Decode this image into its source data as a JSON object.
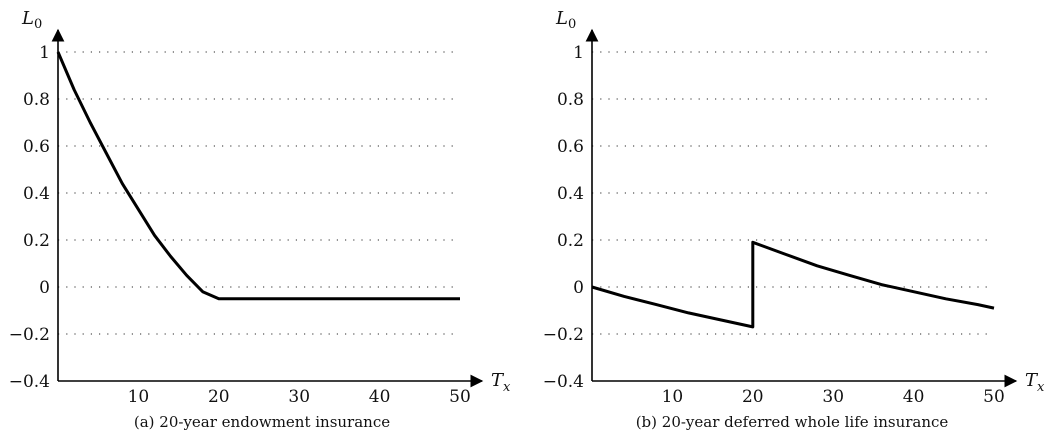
{
  "chart_data": [
    {
      "type": "line",
      "caption": "(a) 20-year endowment insurance",
      "xlabel": "T",
      "xlabel_sub": "x",
      "ylabel": "L",
      "ylabel_sub": "0",
      "xlim": [
        0,
        51
      ],
      "ylim": [
        -0.4,
        1.0
      ],
      "xticks": [
        10,
        20,
        30,
        40,
        50
      ],
      "yticks": [
        1,
        0.8,
        0.6,
        0.4,
        0.2,
        0,
        -0.2,
        -0.4
      ],
      "ytick_labels": [
        "1",
        "0.8",
        "0.6",
        "0.4",
        "0.2",
        "0",
        "−0.2",
        "−0.4"
      ],
      "grid": true,
      "series": [
        {
          "x": [
            0,
            2,
            4,
            6,
            8,
            10,
            12,
            14,
            16,
            18,
            20,
            20,
            30,
            40,
            50
          ],
          "y": [
            1.0,
            0.84,
            0.7,
            0.57,
            0.44,
            0.33,
            0.22,
            0.13,
            0.05,
            -0.02,
            -0.05,
            -0.05,
            -0.05,
            -0.05,
            -0.05
          ]
        }
      ]
    },
    {
      "type": "line",
      "caption": "(b) 20-year deferred whole life insurance",
      "xlabel": "T",
      "xlabel_sub": "x",
      "ylabel": "L",
      "ylabel_sub": "0",
      "xlim": [
        0,
        51
      ],
      "ylim": [
        -0.4,
        1.0
      ],
      "xticks": [
        10,
        20,
        30,
        40,
        50
      ],
      "yticks": [
        1,
        0.8,
        0.6,
        0.4,
        0.2,
        0,
        -0.2,
        -0.4
      ],
      "ytick_labels": [
        "1",
        "0.8",
        "0.6",
        "0.4",
        "0.2",
        "0",
        "−0.2",
        "−0.4"
      ],
      "grid": true,
      "series": [
        {
          "x": [
            0,
            4,
            8,
            12,
            16,
            20,
            20,
            24,
            28,
            32,
            36,
            40,
            44,
            48,
            50
          ],
          "y": [
            0.0,
            -0.04,
            -0.075,
            -0.11,
            -0.14,
            -0.17,
            0.19,
            0.14,
            0.09,
            0.05,
            0.01,
            -0.02,
            -0.05,
            -0.075,
            -0.09
          ]
        }
      ]
    }
  ]
}
